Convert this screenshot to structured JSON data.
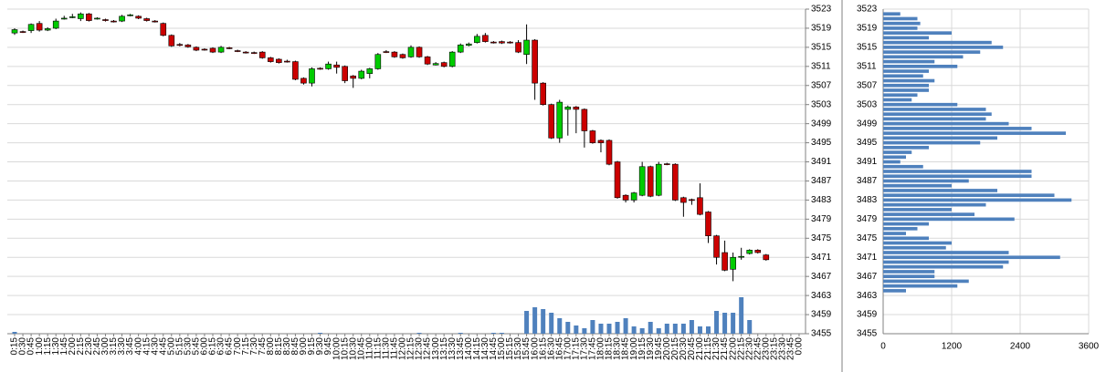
{
  "chart_data": [
    {
      "type": "candlestick",
      "categories": [
        "0:15",
        "0:30",
        "0:45",
        "1:00",
        "1:15",
        "1:30",
        "1:45",
        "2:00",
        "2:15",
        "2:30",
        "2:45",
        "3:00",
        "3:15",
        "3:30",
        "3:45",
        "4:00",
        "4:15",
        "4:30",
        "4:45",
        "5:00",
        "5:15",
        "5:30",
        "5:45",
        "6:00",
        "6:15",
        "6:30",
        "6:45",
        "7:00",
        "7:15",
        "7:30",
        "7:45",
        "8:00",
        "8:15",
        "8:30",
        "8:45",
        "9:00",
        "9:15",
        "9:30",
        "9:45",
        "10:00",
        "10:15",
        "10:30",
        "10:45",
        "11:00",
        "11:15",
        "11:30",
        "11:45",
        "12:00",
        "12:15",
        "12:30",
        "12:45",
        "13:00",
        "13:15",
        "13:30",
        "13:45",
        "14:00",
        "14:15",
        "14:30",
        "14:45",
        "15:00",
        "15:15",
        "15:30",
        "15:45",
        "16:00",
        "16:15",
        "16:30",
        "16:45",
        "17:00",
        "17:15",
        "17:30",
        "17:45",
        "18:00",
        "18:15",
        "18:30",
        "18:45",
        "19:00",
        "19:15",
        "19:30",
        "19:45",
        "20:00",
        "20:15",
        "20:30",
        "20:45",
        "21:00",
        "21:15",
        "21:30",
        "21:45",
        "22:00",
        "22:15",
        "22:30",
        "22:45",
        "23:00",
        "23:15",
        "23:30",
        "23:45",
        "0:00"
      ],
      "open": [
        3518,
        3518.3,
        3518.5,
        3520,
        3518.6,
        3519,
        3521,
        3521.3,
        3521,
        3522,
        3521,
        3520.8,
        3520.5,
        3520.5,
        3521.7,
        3521.5,
        3521,
        3520.5,
        3520,
        3517.5,
        3515.6,
        3515.5,
        3515,
        3514.6,
        3514.8,
        3514,
        3514.9,
        3514.3,
        3514,
        3513.9,
        3514,
        3512.8,
        3512.5,
        3512.1,
        3512,
        3508.5,
        3507.5,
        3510.6,
        3510.5,
        3511.3,
        3511,
        3509,
        3508.5,
        3509.5,
        3510.5,
        3514.1,
        3514,
        3513.5,
        3513,
        3515,
        3513,
        3511.3,
        3511.8,
        3511,
        3514,
        3515.4,
        3516,
        3517.5,
        3516.1,
        3516.2,
        3516.1,
        3516,
        3513.5,
        3516.5,
        3507.5,
        3503,
        3496,
        3502,
        3502.5,
        3502,
        3497.5,
        3495.5,
        3495.5,
        3491,
        3484,
        3483,
        3484,
        3490,
        3484,
        3490.6,
        3490.5,
        3483.5,
        3483.1,
        3483.5,
        3480.5,
        3475.5,
        3472,
        3468.5,
        3471.1,
        3471.8,
        3472.5,
        3471.5,
        null,
        null,
        null,
        null
      ],
      "high": [
        3519,
        3518.5,
        3520,
        3520.5,
        3519.2,
        3521,
        3521.6,
        3522,
        3522.3,
        3522.2,
        3521.3,
        3521,
        3520.7,
        3521.8,
        3522,
        3521.7,
        3521.2,
        3520.7,
        3520.2,
        3517.7,
        3515.9,
        3515.7,
        3515.2,
        3514.8,
        3515,
        3515.3,
        3515.1,
        3514.5,
        3514.2,
        3514.1,
        3514.2,
        3513,
        3512.7,
        3512.4,
        3512.2,
        3508.7,
        3510.8,
        3510.8,
        3512,
        3512,
        3511.2,
        3509.2,
        3510.3,
        3510.7,
        3513.8,
        3514.4,
        3514.2,
        3513.7,
        3515.4,
        3515.2,
        3513.2,
        3511.9,
        3512,
        3514.2,
        3515.8,
        3516,
        3517.8,
        3518,
        3516.3,
        3516.4,
        3516.3,
        3516.5,
        3519.8,
        3516.7,
        3507.7,
        3503.2,
        3504,
        3502.8,
        3502.7,
        3502.2,
        3497.7,
        3495.7,
        3495.7,
        3491.2,
        3484.2,
        3484.7,
        3491,
        3490.2,
        3491,
        3490.8,
        3490.7,
        3483.7,
        3483.3,
        3486.5,
        3480.7,
        3475.7,
        3474.5,
        3472,
        3473,
        3472.7,
        3472.7,
        3471.7,
        null,
        null,
        null,
        null
      ],
      "low": [
        3517.6,
        3518,
        3518,
        3518.3,
        3518.4,
        3518.8,
        3520.8,
        3521.1,
        3520.5,
        3520.4,
        3520.8,
        3520.4,
        3520.2,
        3520.3,
        3521.5,
        3520.9,
        3520.4,
        3520.2,
        3517.3,
        3515.1,
        3515.2,
        3514.9,
        3514.2,
        3514.3,
        3513.8,
        3513.8,
        3514.6,
        3514,
        3513.7,
        3513.6,
        3512.6,
        3511.8,
        3511.6,
        3511.8,
        3508.1,
        3507.2,
        3506.8,
        3510.3,
        3510.3,
        3509.5,
        3507.5,
        3506.5,
        3508.3,
        3508.5,
        3510.3,
        3513.8,
        3512.8,
        3512.6,
        3512.8,
        3512.8,
        3511.3,
        3511.2,
        3510.8,
        3510.8,
        3513.8,
        3515.2,
        3515.8,
        3516,
        3515.8,
        3515.7,
        3515.8,
        3513.8,
        3511.5,
        3504,
        3502.8,
        3495.8,
        3495,
        3496.5,
        3497,
        3494,
        3494.8,
        3493,
        3490.3,
        3483.3,
        3482.5,
        3482.5,
        3483.8,
        3483.6,
        3483.8,
        3490.3,
        3482.8,
        3479.5,
        3482,
        3479.8,
        3474,
        3469.5,
        3468.1,
        3466,
        3470.5,
        3471.6,
        3471.8,
        3470.3,
        null,
        null,
        null,
        null
      ],
      "close": [
        3518.7,
        3518.2,
        3519.8,
        3518.6,
        3518.9,
        3520.5,
        3521.1,
        3521.4,
        3522,
        3520.6,
        3521.1,
        3520.6,
        3520.4,
        3521.5,
        3521.8,
        3521.1,
        3520.6,
        3520.4,
        3517.5,
        3515.3,
        3515.4,
        3515.1,
        3514.4,
        3514.5,
        3514,
        3515,
        3514.8,
        3514.2,
        3513.9,
        3513.8,
        3512.8,
        3512,
        3511.8,
        3512,
        3508.3,
        3507.5,
        3510.5,
        3510.5,
        3511.5,
        3510.8,
        3508,
        3508.5,
        3510,
        3510.5,
        3513.5,
        3514,
        3513,
        3512.8,
        3515,
        3513,
        3511.5,
        3511.6,
        3511,
        3514,
        3515.5,
        3515.7,
        3517.3,
        3516.2,
        3516,
        3515.9,
        3516,
        3514,
        3516.5,
        3507.5,
        3503,
        3496,
        3503.5,
        3502.5,
        3502,
        3497.5,
        3495,
        3495,
        3490.5,
        3483.5,
        3483,
        3484.5,
        3490,
        3483.8,
        3490.5,
        3490.5,
        3483,
        3482.5,
        3483,
        3480,
        3475.5,
        3471,
        3468.3,
        3471,
        3471.2,
        3472.5,
        3472,
        3470.5,
        null,
        null,
        null,
        null
      ],
      "volume": [
        200,
        0,
        0,
        0,
        0,
        0,
        0,
        0,
        0,
        0,
        0,
        0,
        0,
        0,
        0,
        0,
        0,
        0,
        0,
        0,
        0,
        0,
        0,
        0,
        0,
        0,
        0,
        0,
        0,
        0,
        0,
        0,
        0,
        0,
        0,
        0,
        0,
        100,
        0,
        0,
        0,
        0,
        0,
        0,
        0,
        0,
        0,
        0,
        0,
        100,
        0,
        0,
        0,
        0,
        100,
        0,
        0,
        0,
        100,
        100,
        0,
        0,
        2500,
        2900,
        2700,
        2300,
        1700,
        1300,
        900,
        600,
        1500,
        1100,
        1100,
        1300,
        1700,
        800,
        600,
        1300,
        600,
        1100,
        1100,
        1100,
        1500,
        800,
        800,
        2500,
        2300,
        2300,
        4000,
        1500,
        0,
        0,
        null,
        null,
        null,
        null
      ],
      "up_color": "#00cc00",
      "down_color": "#cc0000",
      "volume_color": "#4f81bd",
      "ylim": [
        3455,
        3523
      ],
      "yticks": [
        3455,
        3459,
        3463,
        3467,
        3471,
        3475,
        3479,
        3483,
        3487,
        3491,
        3495,
        3499,
        3503,
        3507,
        3511,
        3515,
        3519,
        3523
      ],
      "grid": true
    },
    {
      "type": "bar",
      "orientation": "horizontal",
      "y": [
        3464,
        3465,
        3466,
        3467,
        3468,
        3469,
        3470,
        3471,
        3472,
        3473,
        3474,
        3475,
        3476,
        3477,
        3478,
        3479,
        3480,
        3481,
        3482,
        3483,
        3484,
        3485,
        3486,
        3487,
        3488,
        3489,
        3490,
        3491,
        3492,
        3493,
        3494,
        3495,
        3496,
        3497,
        3498,
        3499,
        3500,
        3501,
        3502,
        3503,
        3504,
        3505,
        3506,
        3507,
        3508,
        3509,
        3510,
        3511,
        3512,
        3513,
        3514,
        3515,
        3516,
        3517,
        3518,
        3519,
        3520,
        3521,
        3522
      ],
      "values": [
        400,
        1300,
        1500,
        900,
        900,
        2100,
        2200,
        3100,
        2200,
        1100,
        1200,
        800,
        400,
        600,
        800,
        2300,
        1600,
        1200,
        1800,
        3300,
        3000,
        2000,
        1200,
        1500,
        2600,
        2600,
        700,
        300,
        400,
        500,
        800,
        1700,
        2000,
        3200,
        2600,
        2200,
        1800,
        1900,
        1800,
        1300,
        500,
        600,
        800,
        800,
        900,
        700,
        800,
        1300,
        900,
        1400,
        1700,
        2100,
        1900,
        800,
        1200,
        600,
        650,
        600,
        300
      ],
      "color": "#4f81bd",
      "xlim": [
        0,
        3600
      ],
      "xticks": [
        0,
        1200,
        2400,
        3600
      ],
      "ylim": [
        3455,
        3523
      ],
      "yticks": [
        3455,
        3459,
        3463,
        3467,
        3471,
        3475,
        3479,
        3483,
        3487,
        3491,
        3495,
        3499,
        3503,
        3507,
        3511,
        3515,
        3519,
        3523
      ],
      "grid": true
    }
  ]
}
